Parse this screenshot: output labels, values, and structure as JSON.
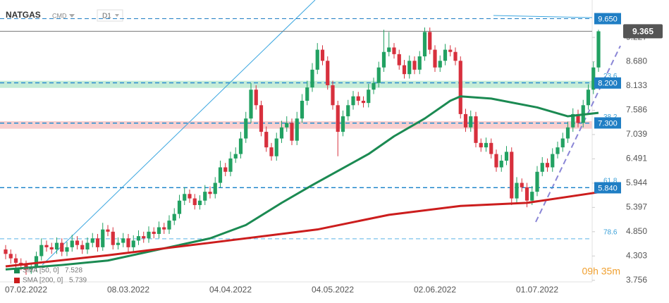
{
  "header": {
    "symbol": "NATGAS",
    "market": "CMD",
    "interval": "D1"
  },
  "timer": "09h 35m",
  "chart_data": {
    "type": "candlestick",
    "categories": [
      null,
      null,
      null,
      null,
      "07.02.2022",
      null,
      null,
      null,
      null,
      null,
      null,
      null,
      null,
      null,
      null,
      null,
      null,
      null,
      null,
      null,
      null,
      null,
      null,
      null,
      "08.03.2022",
      null,
      null,
      null,
      null,
      null,
      null,
      null,
      null,
      null,
      null,
      null,
      null,
      null,
      null,
      null,
      null,
      null,
      null,
      null,
      "04.04.2022",
      null,
      null,
      null,
      null,
      null,
      null,
      null,
      null,
      null,
      null,
      null,
      null,
      null,
      null,
      null,
      null,
      null,
      null,
      null,
      "04.05.2022",
      null,
      null,
      null,
      null,
      null,
      null,
      null,
      null,
      null,
      null,
      null,
      null,
      null,
      null,
      null,
      null,
      null,
      null,
      null,
      "02.06.2022",
      null,
      null,
      null,
      null,
      null,
      null,
      null,
      null,
      null,
      null,
      null,
      null,
      null,
      null,
      null,
      null,
      null,
      null,
      null,
      "01.07.2022",
      null,
      null,
      null,
      null,
      null,
      null,
      null,
      null,
      null,
      null,
      null,
      null
    ],
    "open": [
      4.45,
      4.35,
      4.25,
      4.15,
      4.1,
      4.0,
      4.05,
      4.3,
      4.55,
      4.5,
      4.45,
      4.6,
      4.4,
      4.5,
      4.65,
      4.55,
      4.45,
      4.6,
      4.7,
      4.5,
      4.9,
      4.85,
      4.55,
      4.6,
      4.7,
      4.5,
      4.65,
      4.75,
      4.7,
      4.85,
      4.8,
      4.95,
      4.9,
      5.1,
      5.25,
      5.55,
      5.7,
      5.6,
      5.45,
      5.55,
      5.75,
      5.7,
      5.95,
      6.3,
      6.2,
      6.5,
      6.6,
      6.95,
      7.4,
      8.05,
      7.7,
      7.1,
      6.75,
      6.55,
      6.95,
      7.2,
      7.3,
      6.9,
      7.4,
      7.8,
      8.1,
      8.5,
      8.95,
      8.7,
      8.15,
      7.7,
      7.1,
      7.45,
      7.7,
      7.9,
      7.8,
      7.75,
      8.05,
      8.2,
      8.55,
      8.9,
      9.0,
      8.85,
      8.6,
      8.4,
      8.7,
      8.5,
      8.8,
      9.35,
      8.95,
      8.55,
      8.7,
      8.95,
      8.9,
      8.7,
      7.5,
      7.2,
      7.45,
      6.85,
      6.75,
      6.85,
      6.6,
      6.3,
      6.45,
      6.65,
      5.6,
      5.95,
      5.85,
      5.55,
      5.75,
      6.2,
      6.4,
      6.3,
      6.6,
      6.75,
      6.95,
      7.2,
      7.5,
      7.3,
      7.7,
      8.05,
      8.55
    ],
    "high": [
      4.55,
      4.45,
      4.35,
      4.25,
      4.2,
      4.15,
      4.4,
      4.7,
      4.65,
      4.6,
      4.72,
      4.7,
      4.62,
      4.78,
      4.75,
      4.65,
      4.72,
      4.82,
      4.8,
      5.05,
      5.0,
      4.95,
      4.72,
      4.82,
      4.8,
      4.77,
      4.88,
      4.85,
      4.97,
      4.95,
      5.08,
      5.05,
      5.22,
      5.38,
      5.68,
      5.85,
      5.8,
      5.7,
      5.67,
      5.9,
      5.87,
      6.08,
      6.45,
      6.4,
      6.65,
      6.75,
      7.1,
      7.55,
      8.2,
      8.15,
      7.8,
      7.22,
      6.85,
      7.08,
      7.35,
      7.45,
      7.4,
      7.55,
      7.95,
      8.25,
      8.65,
      9.1,
      9.05,
      8.8,
      8.25,
      7.8,
      7.58,
      7.82,
      8.02,
      8.0,
      7.9,
      8.18,
      8.32,
      8.68,
      9.4,
      9.35,
      9.1,
      8.95,
      8.72,
      8.82,
      8.8,
      8.92,
      9.45,
      9.45,
      9.05,
      8.82,
      9.08,
      9.05,
      9.0,
      8.8,
      7.62,
      7.58,
      7.55,
      6.95,
      6.97,
      6.95,
      6.7,
      6.58,
      6.78,
      6.75,
      6.08,
      6.05,
      5.95,
      5.88,
      6.33,
      6.53,
      6.5,
      6.73,
      6.88,
      7.08,
      7.33,
      7.63,
      7.6,
      7.82,
      8.17,
      8.68,
      9.4
    ],
    "low": [
      4.23,
      4.13,
      4.03,
      3.98,
      3.88,
      3.9,
      3.95,
      4.2,
      4.4,
      4.35,
      4.35,
      4.3,
      4.3,
      4.4,
      4.45,
      4.35,
      4.35,
      4.5,
      4.4,
      4.42,
      4.75,
      4.45,
      4.45,
      4.5,
      4.4,
      4.4,
      4.55,
      4.6,
      4.6,
      4.7,
      4.7,
      4.8,
      4.8,
      5.0,
      5.15,
      5.45,
      5.5,
      5.35,
      5.35,
      5.45,
      5.6,
      5.6,
      5.85,
      6.1,
      6.1,
      6.4,
      6.5,
      6.85,
      7.3,
      7.6,
      7.0,
      6.65,
      6.45,
      6.45,
      6.85,
      7.1,
      6.8,
      6.8,
      7.3,
      7.7,
      8.0,
      8.4,
      8.6,
      8.05,
      7.6,
      6.55,
      7.0,
      7.35,
      7.6,
      7.7,
      7.65,
      7.65,
      7.95,
      8.1,
      8.45,
      8.8,
      8.75,
      8.5,
      8.3,
      8.3,
      8.4,
      8.4,
      8.7,
      8.85,
      8.45,
      8.45,
      8.6,
      8.8,
      8.6,
      7.4,
      7.1,
      7.1,
      6.75,
      6.65,
      6.65,
      6.5,
      6.2,
      6.2,
      6.35,
      5.45,
      5.5,
      5.75,
      5.4,
      5.45,
      5.65,
      6.1,
      6.2,
      6.2,
      6.5,
      6.65,
      6.85,
      7.1,
      7.2,
      7.2,
      7.6,
      7.95,
      8.45
    ],
    "close": [
      4.35,
      4.25,
      4.15,
      4.1,
      4.0,
      4.05,
      4.3,
      4.55,
      4.5,
      4.45,
      4.6,
      4.4,
      4.5,
      4.65,
      4.55,
      4.45,
      4.6,
      4.7,
      4.5,
      4.9,
      4.85,
      4.55,
      4.6,
      4.7,
      4.5,
      4.65,
      4.75,
      4.7,
      4.85,
      4.8,
      4.95,
      4.9,
      5.1,
      5.25,
      5.55,
      5.7,
      5.6,
      5.45,
      5.55,
      5.75,
      5.7,
      5.95,
      6.3,
      6.2,
      6.5,
      6.6,
      6.95,
      7.4,
      8.05,
      7.7,
      7.1,
      6.75,
      6.55,
      6.95,
      7.2,
      7.3,
      6.9,
      7.4,
      7.8,
      8.1,
      8.5,
      8.95,
      8.7,
      8.15,
      7.7,
      7.1,
      7.45,
      7.7,
      7.9,
      7.8,
      7.75,
      8.05,
      8.2,
      8.55,
      8.9,
      9.0,
      8.85,
      8.6,
      8.4,
      8.7,
      8.5,
      8.8,
      9.35,
      8.95,
      8.55,
      8.7,
      8.95,
      8.9,
      8.7,
      7.5,
      7.2,
      7.45,
      6.85,
      6.75,
      6.85,
      6.6,
      6.3,
      6.45,
      6.65,
      5.6,
      5.95,
      5.85,
      5.55,
      5.75,
      6.2,
      6.4,
      6.3,
      6.6,
      6.75,
      6.95,
      7.2,
      7.5,
      7.3,
      7.7,
      8.05,
      8.55,
      9.365
    ],
    "up_color": "#22a162",
    "down_color": "#d7303d",
    "ylim": [
      3.72,
      10.07
    ],
    "yticks": [
      9.227,
      {
        "value": 8.68,
        "label": "8.680"
      },
      8.133,
      7.586,
      7.039,
      6.491,
      5.944,
      5.397,
      {
        "value": 4.85,
        "label": "4.850"
      },
      4.303,
      3.756
    ],
    "series": [
      {
        "name": "SMA [50, 0]",
        "color": "#1b8a52",
        "x": [
          0,
          11,
          20,
          40,
          47,
          54,
          60,
          71,
          76,
          82,
          87,
          89,
          95,
          104,
          110,
          116
        ],
        "values": [
          4.0,
          4.1,
          4.2,
          4.7,
          5.0,
          5.5,
          5.9,
          6.6,
          7.0,
          7.4,
          7.8,
          7.9,
          7.85,
          7.65,
          7.45,
          7.528
        ]
      },
      {
        "name": "SMA [200, 0]",
        "color": "#cc1d1d",
        "x": [
          0,
          20,
          40,
          61,
          75,
          89,
          102,
          116
        ],
        "values": [
          4.07,
          4.32,
          4.6,
          4.9,
          5.23,
          5.43,
          5.5,
          5.739
        ]
      }
    ],
    "levels": [
      {
        "value": 9.65,
        "label": "9.650"
      },
      {
        "value": 8.2,
        "label": "8.200"
      },
      {
        "value": 7.3,
        "label": "7.300"
      },
      {
        "value": 5.84,
        "label": "5.840"
      }
    ],
    "level_color": "#1f7ec4",
    "last_price": 9.365,
    "fibonacci": [
      {
        "ratio": 23.6,
        "price": 8.21
      },
      {
        "ratio": 38.2,
        "price": 7.29
      },
      {
        "ratio": 61.8,
        "price": 5.85
      },
      {
        "ratio": 78.6,
        "price": 4.69
      }
    ],
    "bands": [
      {
        "from": 8.09,
        "to": 8.25,
        "color": "#bfead3"
      },
      {
        "from": 7.17,
        "to": 7.34,
        "color": "#f7caca"
      }
    ]
  }
}
